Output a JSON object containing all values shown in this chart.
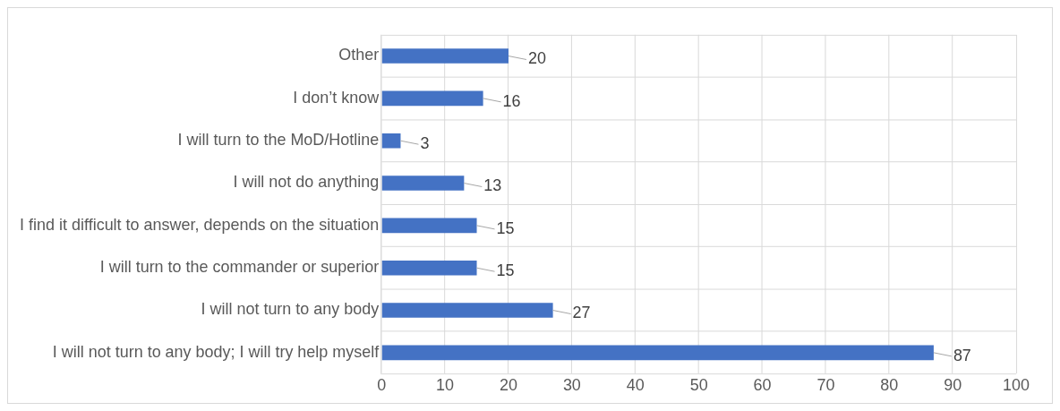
{
  "chart_data": {
    "type": "bar",
    "orientation": "horizontal",
    "categories": [
      "Other",
      "I don’t know",
      "I will turn to the MoD/Hotline",
      "I will not do anything",
      "I find it difficult to answer, depends on the situation",
      "I will turn to the commander or superior",
      "I will not turn to any body",
      "I will not turn to any body; I will try help myself"
    ],
    "values": [
      20,
      16,
      3,
      13,
      15,
      15,
      27,
      87
    ],
    "color": "#4472c4",
    "xlim": [
      0,
      100
    ],
    "xticks": [
      0,
      10,
      20,
      30,
      40,
      50,
      60,
      70,
      80,
      90,
      100
    ],
    "grid": true,
    "data_labels": true
  }
}
